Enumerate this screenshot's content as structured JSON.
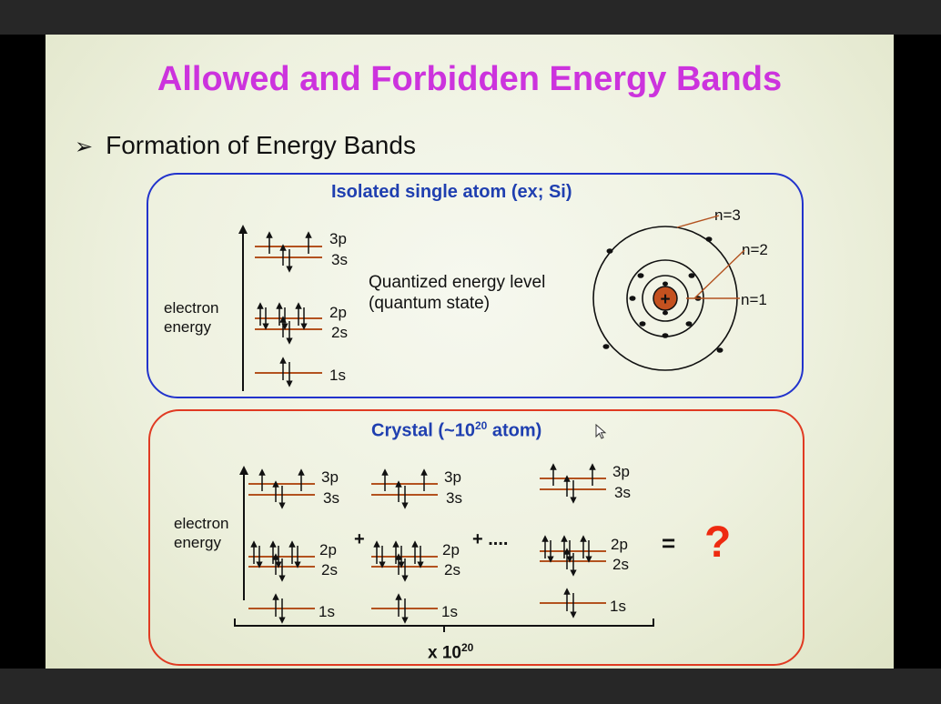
{
  "slide": {
    "title": "Allowed and Forbidden Energy Bands",
    "bullet_symbol": "➢",
    "bullet": "Formation of Energy Bands"
  },
  "isolated": {
    "title": "Isolated single atom (ex; Si)",
    "axis_label": [
      "electron",
      "energy"
    ],
    "levels": [
      "3p",
      "3s",
      "2p",
      "2s",
      "1s"
    ],
    "quantized": [
      "Quantized energy level",
      "(quantum state)"
    ],
    "shells": [
      "n=3",
      "n=2",
      "n=1"
    ],
    "nucleus": "+"
  },
  "crystal": {
    "title_prefix": "Crystal (~10",
    "title_exp": "20",
    "title_suffix": " atom)",
    "axis_label": [
      "electron",
      "energy"
    ],
    "levels": [
      "3p",
      "3s",
      "2p",
      "2s",
      "1s"
    ],
    "plus1": "+",
    "plus2": "+ ....",
    "equals": "=",
    "question": "?",
    "multiplier_base": "x 10",
    "multiplier_exp": "20"
  },
  "colors": {
    "title": "#cc33dd",
    "box_blue": "#2233cc",
    "box_red": "#e03a22",
    "level_line": "#b3521f",
    "nucleus": "#c4511f",
    "question": "#ee2a10"
  }
}
